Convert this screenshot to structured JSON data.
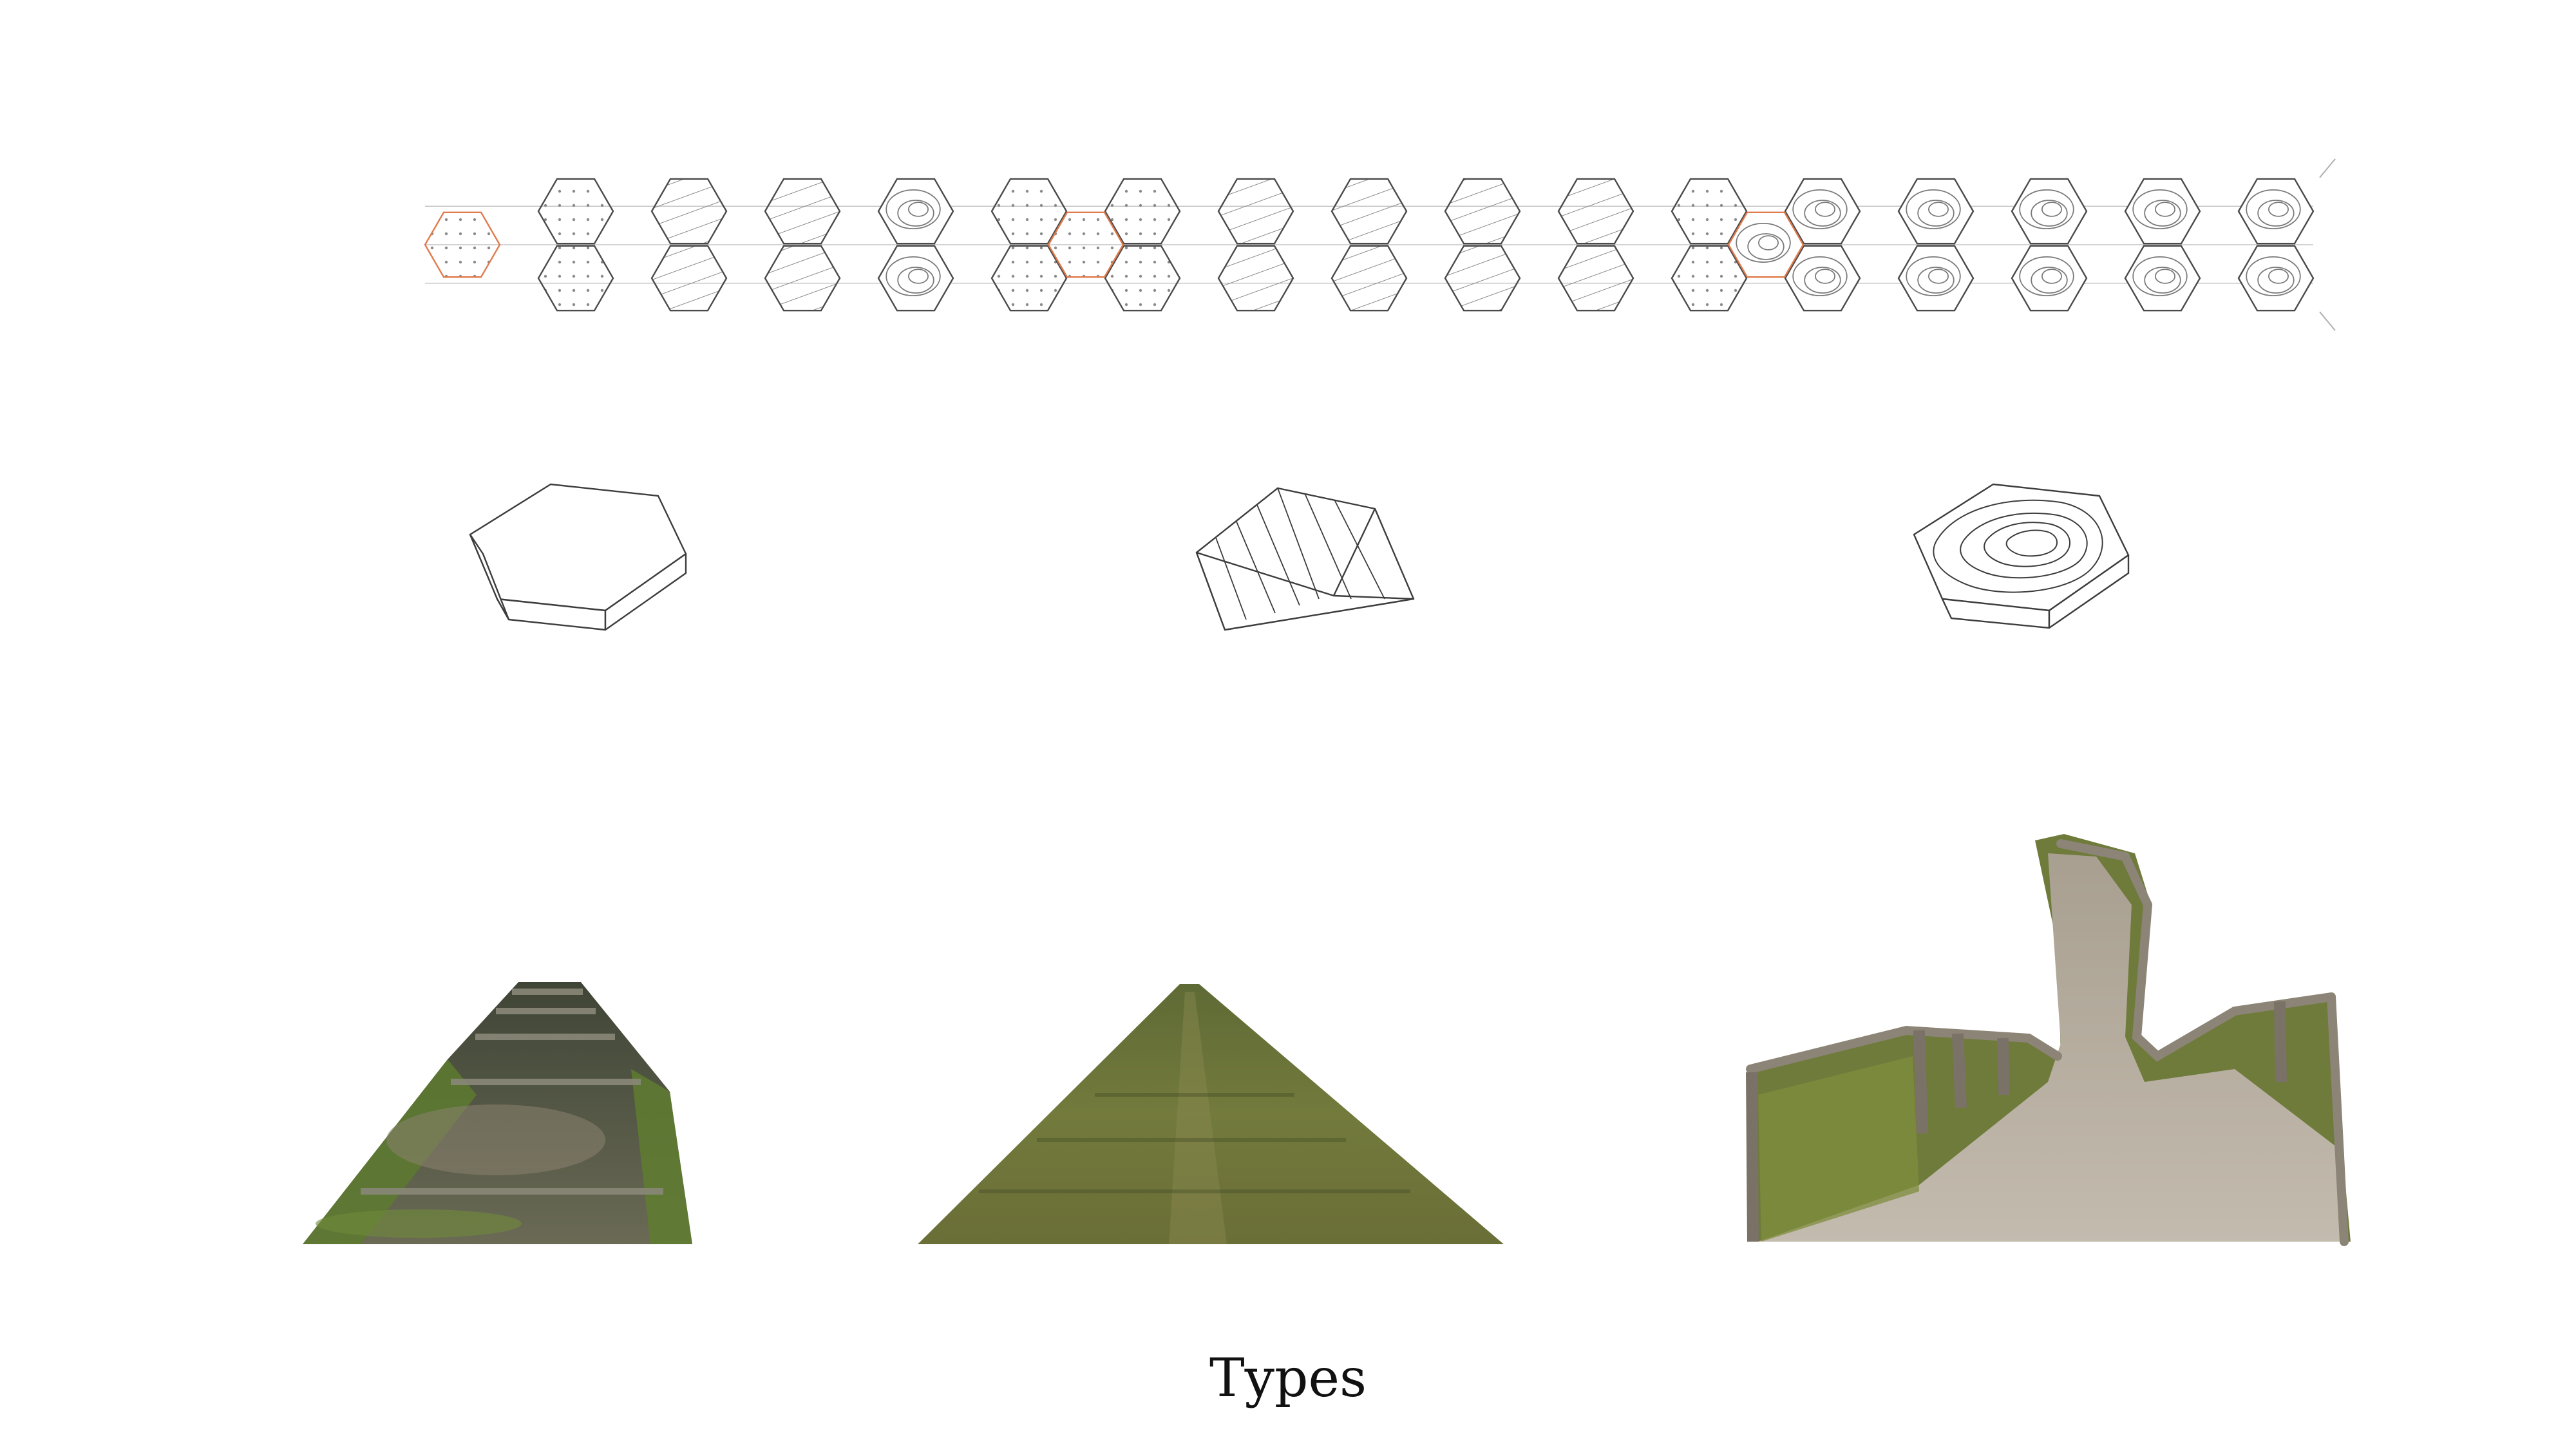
{
  "caption": "Types",
  "colors": {
    "background": "#ffffff",
    "line": "#4a4a4a",
    "line_light": "#9a9a9a",
    "accent_highlight": "#e07a4a",
    "grass_dark": "#4f5a2a",
    "grass_light": "#8a8f4c",
    "path_sand": "#b9b1a3",
    "rail_wood": "#8c8476"
  },
  "pattern_strip": {
    "module_count": 17,
    "module_patterns": [
      "dots",
      "dots",
      "lines",
      "lines",
      "contour",
      "dots",
      "dots",
      "lines",
      "lines",
      "lines",
      "lines",
      "dots",
      "contour",
      "contour",
      "contour",
      "contour",
      "contour"
    ],
    "highlighted_modules": [
      0,
      6,
      12
    ]
  },
  "types": [
    {
      "name": "flat-hexagon-block",
      "pattern": "plain",
      "photo": "stone-stairs-path"
    },
    {
      "name": "ridged-prism-block",
      "pattern": "parallel-lines",
      "photo": "grass-strip-path"
    },
    {
      "name": "contoured-mound-block",
      "pattern": "contour",
      "photo": "fenced-dune-path"
    }
  ]
}
